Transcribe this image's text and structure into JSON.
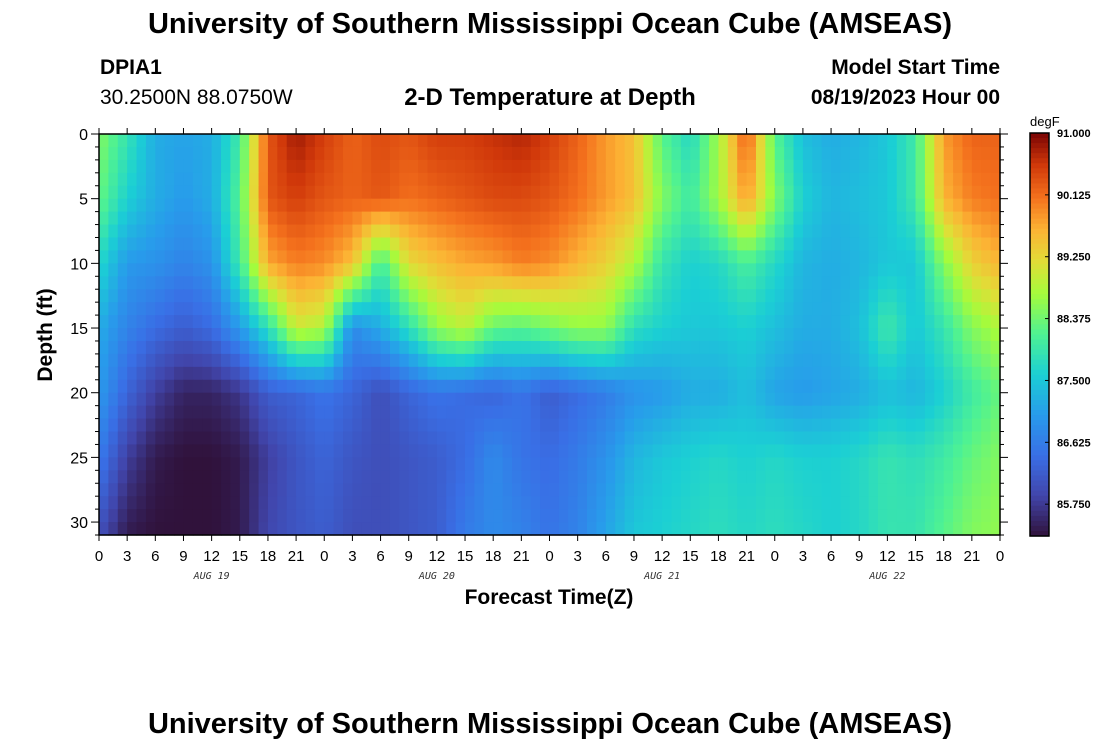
{
  "header": {
    "title": "University of Southern Mississippi Ocean Cube (AMSEAS)",
    "station": "DPIA1",
    "coords": "30.2500N  88.0750W",
    "subtitle": "2-D Temperature at Depth",
    "model_start_label": "Model Start Time",
    "model_start_value": "08/19/2023 Hour 00"
  },
  "footer": {
    "title": "University of Southern Mississippi Ocean Cube (AMSEAS)"
  },
  "chart_data": {
    "type": "heatmap",
    "title": "2-D Temperature at Depth",
    "xlabel": "Forecast Time(Z)",
    "ylabel": "Depth (ft)",
    "x_tick_labels": [
      "0",
      "3",
      "6",
      "9",
      "12",
      "15",
      "18",
      "21",
      "0",
      "3",
      "6",
      "9",
      "12",
      "15",
      "18",
      "21",
      "0",
      "3",
      "6",
      "9",
      "12",
      "15",
      "18",
      "21",
      "0",
      "3",
      "6",
      "9",
      "12",
      "15",
      "18",
      "21",
      "0"
    ],
    "day_labels": [
      "AUG 19",
      "AUG 20",
      "AUG 21",
      "AUG 22"
    ],
    "x_range_hours": [
      0,
      96
    ],
    "y_ticks": [
      0,
      5,
      10,
      15,
      20,
      25,
      30
    ],
    "y_range_ft": [
      0,
      31
    ],
    "y_reversed": true,
    "colorbar": {
      "unit": "degF",
      "tick_labels": [
        "91.000",
        "90.125",
        "89.250",
        "88.375",
        "87.500",
        "86.625",
        "85.750"
      ],
      "min": 85.3,
      "max": 91.0
    },
    "depths_ft": [
      0,
      5,
      10,
      15,
      20,
      25,
      31
    ],
    "times_hr": [
      0,
      3,
      6,
      9,
      12,
      15,
      18,
      21,
      24,
      27,
      30,
      33,
      36,
      39,
      42,
      45,
      48,
      51,
      54,
      57,
      60,
      63,
      66,
      69,
      72,
      75,
      78,
      81,
      84,
      87,
      90,
      93,
      96
    ],
    "temperature_degF": [
      [
        88.5,
        87.9,
        87.2,
        87.1,
        87.2,
        88.0,
        90.3,
        90.8,
        90.5,
        90.2,
        90.4,
        90.3,
        90.5,
        90.5,
        90.6,
        90.7,
        90.5,
        90.2,
        89.8,
        89.5,
        88.2,
        87.7,
        88.7,
        90.3,
        88.2,
        87.4,
        87.2,
        87.3,
        87.5,
        88.0,
        89.8,
        90.2,
        90.2
      ],
      [
        88.3,
        87.6,
        87.2,
        87.0,
        87.2,
        88.2,
        90.3,
        90.5,
        90.3,
        90.2,
        90.3,
        90.1,
        90.2,
        90.3,
        90.4,
        90.4,
        90.3,
        90.1,
        89.8,
        89.5,
        88.5,
        88.0,
        88.7,
        89.8,
        88.5,
        87.6,
        87.3,
        87.4,
        87.5,
        88.0,
        89.6,
        90.0,
        90.1
      ],
      [
        87.7,
        87.0,
        86.9,
        86.7,
        86.9,
        88.0,
        89.7,
        90.0,
        89.9,
        89.5,
        88.0,
        89.2,
        89.5,
        89.7,
        89.8,
        90.0,
        89.9,
        89.6,
        89.3,
        88.8,
        87.9,
        87.6,
        87.7,
        88.1,
        87.7,
        87.3,
        87.2,
        87.3,
        87.5,
        87.5,
        88.5,
        89.3,
        89.6
      ],
      [
        87.2,
        86.7,
        86.4,
        86.2,
        86.4,
        87.0,
        87.8,
        89.0,
        88.8,
        86.8,
        87.2,
        87.8,
        88.6,
        88.9,
        88.3,
        88.2,
        88.4,
        88.6,
        88.6,
        87.8,
        87.6,
        87.5,
        87.5,
        87.6,
        87.4,
        87.2,
        87.2,
        87.4,
        88.0,
        87.5,
        87.9,
        88.5,
        88.8
      ],
      [
        87.0,
        86.3,
        85.8,
        85.5,
        85.5,
        85.7,
        86.2,
        86.3,
        86.5,
        86.3,
        86.0,
        86.3,
        86.5,
        86.4,
        86.3,
        86.5,
        86.2,
        86.4,
        86.6,
        86.9,
        87.0,
        87.2,
        87.2,
        87.4,
        87.1,
        87.0,
        87.1,
        87.2,
        87.4,
        87.3,
        87.6,
        88.0,
        88.3
      ],
      [
        86.6,
        85.8,
        85.4,
        85.3,
        85.3,
        85.4,
        85.8,
        86.1,
        86.3,
        86.1,
        86.0,
        86.1,
        86.2,
        86.4,
        86.8,
        86.5,
        86.4,
        86.6,
        86.9,
        87.3,
        87.5,
        87.6,
        87.7,
        87.6,
        87.7,
        87.6,
        87.6,
        87.7,
        87.9,
        87.8,
        88.0,
        88.3,
        88.5
      ],
      [
        86.0,
        85.4,
        85.3,
        85.3,
        85.3,
        85.4,
        85.9,
        86.1,
        86.2,
        86.0,
        86.0,
        86.1,
        86.2,
        86.6,
        86.8,
        86.7,
        86.5,
        86.7,
        87.1,
        87.5,
        87.6,
        87.7,
        87.8,
        87.7,
        87.8,
        87.7,
        87.6,
        87.7,
        87.9,
        87.9,
        88.2,
        88.5,
        88.6
      ]
    ]
  }
}
